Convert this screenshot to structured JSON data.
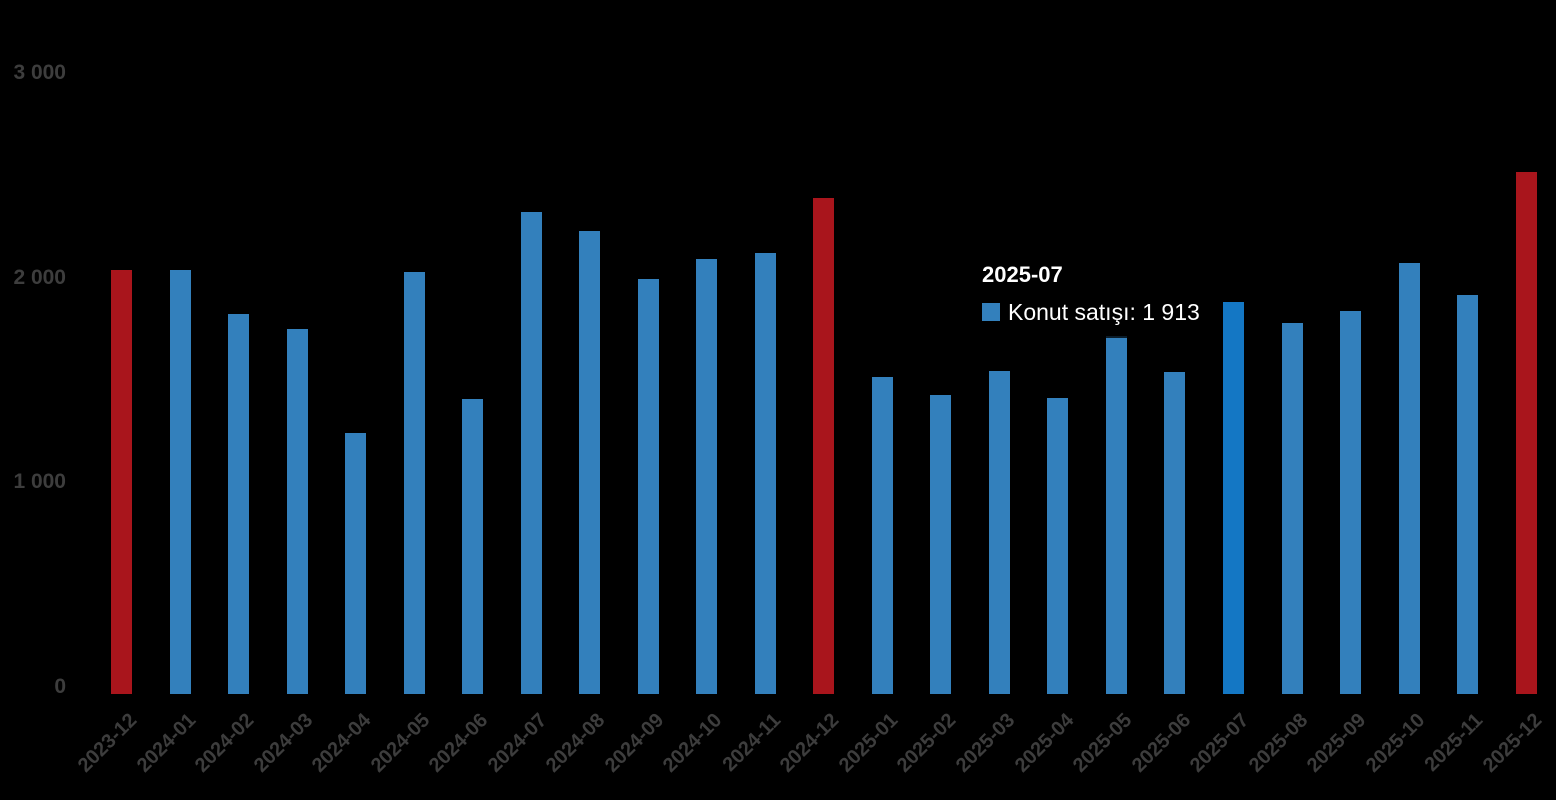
{
  "chart_data": {
    "type": "bar",
    "title": "",
    "series_name": "Konut satışı",
    "categories": [
      "2023-12",
      "2024-01",
      "2024-02",
      "2024-03",
      "2024-04",
      "2024-05",
      "2024-06",
      "2024-07",
      "2024-08",
      "2024-09",
      "2024-10",
      "2024-11",
      "2024-12",
      "2025-01",
      "2025-02",
      "2025-03",
      "2025-04",
      "2025-05",
      "2025-06",
      "2025-07",
      "2025-08",
      "2025-09",
      "2025-10",
      "2025-11",
      "2025-12"
    ],
    "values": [
      2070,
      2070,
      1858,
      1784,
      1273,
      2063,
      1442,
      2356,
      2263,
      2029,
      2126,
      2156,
      2424,
      1549,
      1461,
      1579,
      1447,
      1750,
      1574,
      1913,
      1813,
      1872,
      2107,
      1950,
      2552
    ],
    "point_states": [
      "december",
      "normal",
      "normal",
      "normal",
      "normal",
      "normal",
      "normal",
      "normal",
      "normal",
      "normal",
      "normal",
      "normal",
      "december",
      "normal",
      "normal",
      "normal",
      "normal",
      "normal",
      "normal",
      "hover",
      "normal",
      "normal",
      "normal",
      "normal",
      "december"
    ],
    "colors": {
      "normal": "#3380bc",
      "hover": "#1477c4",
      "december": "#a9151c"
    },
    "background_color": "#000000",
    "axis_text_color": "#3d3d3d",
    "ylim": [
      0,
      3000
    ],
    "yticks": [
      {
        "value": 0,
        "label": "0"
      },
      {
        "value": 1000,
        "label": "1 000"
      },
      {
        "value": 2000,
        "label": "2 000"
      },
      {
        "value": 3000,
        "label": "3 000"
      }
    ],
    "x_label_rotation": -45,
    "grid": false,
    "legend_position": "none"
  },
  "tooltip": {
    "title": "2025-07",
    "series_label": "Konut satışı",
    "value": "1 913",
    "text": "Konut satışı: 1 913",
    "marker_color": "#3380bc"
  }
}
